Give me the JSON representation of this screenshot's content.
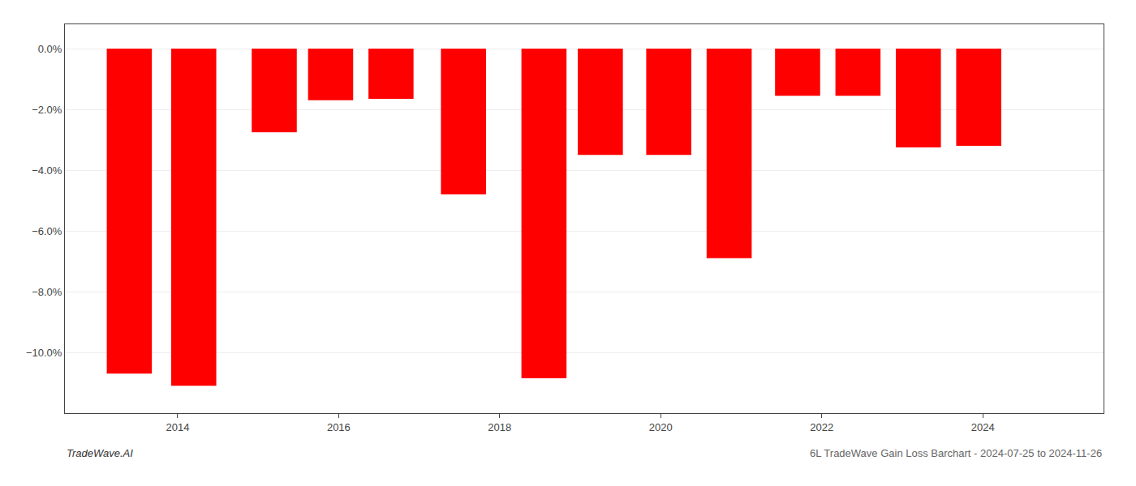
{
  "chart_data": {
    "type": "bar",
    "x": [
      2013.4,
      2014.2,
      2015.2,
      2015.9,
      2016.65,
      2017.55,
      2018.55,
      2019.25,
      2020.1,
      2020.85,
      2021.7,
      2022.45,
      2023.2,
      2023.95
    ],
    "values": [
      -10.7,
      -11.1,
      -2.75,
      -1.7,
      -1.65,
      -4.8,
      -10.85,
      -3.5,
      -3.5,
      -6.9,
      -1.55,
      -1.55,
      -3.25,
      -3.2
    ],
    "color": "#ff0000",
    "xlim": [
      2012.6,
      2025.5
    ],
    "xticks": [
      2014,
      2016,
      2018,
      2020,
      2022,
      2024
    ],
    "ylim": [
      -12.0,
      0.8
    ],
    "yticks": [
      {
        "value": 0.0,
        "label": "0.0%"
      },
      {
        "value": -2.0,
        "label": "−2.0%"
      },
      {
        "value": -4.0,
        "label": "−4.0%"
      },
      {
        "value": -6.0,
        "label": "−6.0%"
      },
      {
        "value": -8.0,
        "label": "−8.0%"
      },
      {
        "value": -10.0,
        "label": "−10.0%"
      }
    ],
    "grid": true,
    "annotations": [
      "TradeWave.AI",
      "6L TradeWave Gain Loss Barchart - 2024-07-25 to 2024-11-26"
    ]
  }
}
